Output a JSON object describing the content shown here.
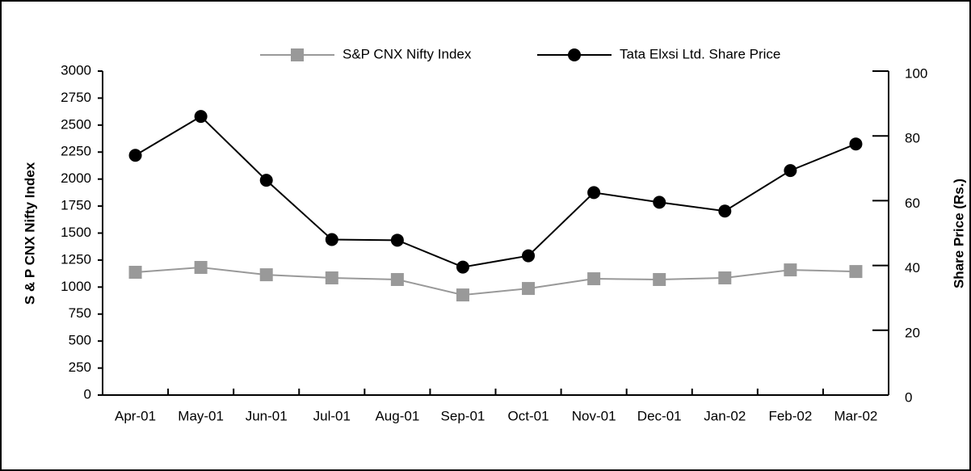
{
  "chart_data": {
    "type": "line",
    "categories": [
      "Apr-01",
      "May-01",
      "Jun-01",
      "Jul-01",
      "Aug-01",
      "Sep-01",
      "Oct-01",
      "Nov-01",
      "Dec-01",
      "Jan-02",
      "Feb-02",
      "Mar-02"
    ],
    "y_label": "S & P CNX Nifty Index",
    "y2_label": "Share Price (Rs.)",
    "ylim": [
      0,
      3000
    ],
    "yticks": [
      0,
      250,
      500,
      750,
      1000,
      1250,
      1500,
      1750,
      2000,
      2250,
      2500,
      2750,
      3000
    ],
    "y2lim": [
      0,
      100
    ],
    "y2ticks": [
      0,
      20,
      40,
      60,
      80,
      100
    ],
    "series": [
      {
        "name": "S&P CNX Nifty Index",
        "color": "#999999",
        "marker": "square",
        "values": [
          1137,
          1182,
          1114,
          1085,
          1070,
          927,
          987,
          1077,
          1070,
          1085,
          1159,
          1144
        ]
      },
      {
        "name": "Tata Elxsi Ltd. Share Price",
        "color": "#000000",
        "marker": "circle",
        "axis": "y2",
        "values": [
          74,
          86,
          66.3,
          48,
          47.8,
          39.5,
          43,
          62.5,
          59.5,
          56.8,
          69.3,
          77.5
        ]
      }
    ]
  }
}
